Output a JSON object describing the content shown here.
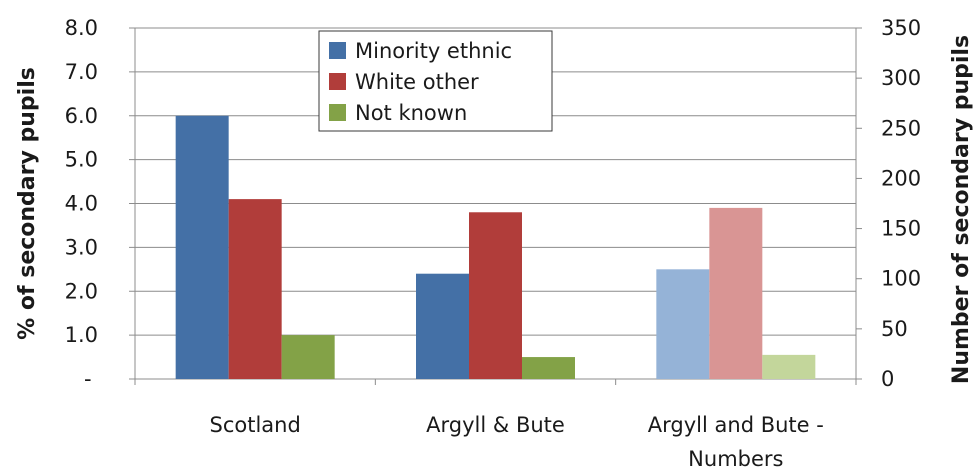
{
  "chart_data": {
    "type": "bar",
    "categories": [
      [
        "Scotland"
      ],
      [
        "Argyll & Bute"
      ],
      [
        "Argyll and Bute -",
        "Numbers"
      ]
    ],
    "series": [
      {
        "name": "Minority ethnic",
        "color": "#4470A6",
        "values": [
          6.0,
          2.4,
          2.5
        ],
        "category_colors": [
          "#4470A6",
          "#4470A6",
          "#95B3D7"
        ]
      },
      {
        "name": "White other",
        "color": "#B13D3A",
        "values": [
          4.1,
          3.8,
          3.9
        ],
        "category_colors": [
          "#B13D3A",
          "#B13D3A",
          "#D99594"
        ]
      },
      {
        "name": "Not known",
        "color": "#83A247",
        "values": [
          1.0,
          0.5,
          0.55
        ],
        "category_colors": [
          "#83A247",
          "#83A247",
          "#C3D69B"
        ]
      }
    ],
    "y_axis_left": {
      "label": "% of secondary  pupils",
      "ylim": [
        0,
        8
      ],
      "ticks": [
        "-",
        "1.0",
        "2.0",
        "3.0",
        "4.0",
        "5.0",
        "6.0",
        "7.0",
        "8.0"
      ]
    },
    "y_axis_right": {
      "label": "Number of secondary pupils",
      "ylim": [
        0,
        350
      ],
      "ticks": [
        "0",
        "50",
        "100",
        "150",
        "200",
        "250",
        "300",
        "350"
      ]
    },
    "gridlines": true,
    "legend_position": "top-center"
  }
}
